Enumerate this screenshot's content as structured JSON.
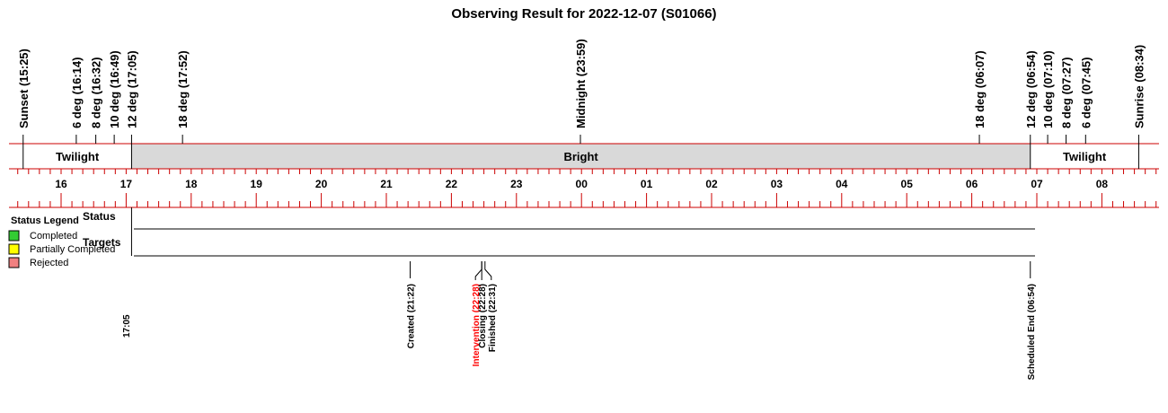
{
  "chart_data": {
    "type": "timeline",
    "title": "Observing Result for 2022-12-07 (S01066)",
    "x_axis": {
      "unit": "hour",
      "range_start": "15:25",
      "range_end": "08:34",
      "hour_ticks": [
        "16",
        "17",
        "18",
        "19",
        "20",
        "21",
        "22",
        "23",
        "00",
        "01",
        "02",
        "03",
        "04",
        "05",
        "06",
        "07",
        "08"
      ]
    },
    "events_top": [
      {
        "label": "Sunset (15:25)",
        "time": "15:25"
      },
      {
        "label": "6 deg (16:14)",
        "time": "16:14"
      },
      {
        "label": "8 deg (16:32)",
        "time": "16:32"
      },
      {
        "label": "10 deg (16:49)",
        "time": "16:49"
      },
      {
        "label": "12 deg (17:05)",
        "time": "17:05"
      },
      {
        "label": "18 deg (17:52)",
        "time": "17:52"
      },
      {
        "label": "Midnight (23:59)",
        "time": "23:59"
      },
      {
        "label": "18 deg (06:07)",
        "time": "06:07"
      },
      {
        "label": "12 deg (06:54)",
        "time": "06:54"
      },
      {
        "label": "10 deg (07:10)",
        "time": "07:10"
      },
      {
        "label": "8 deg (07:27)",
        "time": "07:27"
      },
      {
        "label": "6 deg (07:45)",
        "time": "07:45"
      },
      {
        "label": "Sunrise (08:34)",
        "time": "08:34"
      }
    ],
    "bands": [
      {
        "label": "Twilight",
        "start": "15:25",
        "end": "17:05",
        "color": "#ffffff"
      },
      {
        "label": "Bright",
        "start": "17:05",
        "end": "06:54",
        "color": "#d9d9d9"
      },
      {
        "label": "Twilight",
        "start": "06:54",
        "end": "08:34",
        "color": "#ffffff"
      }
    ],
    "rows": [
      {
        "label": "Status"
      },
      {
        "label": "Targets"
      }
    ],
    "row_span": {
      "start": "17:05",
      "end": "06:54"
    },
    "start_label": "17:05",
    "events_bottom": [
      {
        "label": "Created (21:22)",
        "time": "21:22",
        "color": "#000000"
      },
      {
        "label": "Intervention (22:28)",
        "time": "22:28",
        "color": "#ff0000"
      },
      {
        "label": "Closing (22:28)",
        "time": "22:28",
        "color": "#000000"
      },
      {
        "label": "Finished (22:31)",
        "time": "22:31",
        "color": "#000000"
      },
      {
        "label": "Scheduled End (06:54)",
        "time": "06:54",
        "color": "#000000"
      }
    ],
    "legend": {
      "title": "Status Legend",
      "placement": "left",
      "items": [
        {
          "label": "Completed",
          "color": "#33cc33"
        },
        {
          "label": "Partially Completed",
          "color": "#ffff00"
        },
        {
          "label": "Rejected",
          "color": "#f08080"
        }
      ]
    },
    "axis_color": "#cc0000"
  }
}
